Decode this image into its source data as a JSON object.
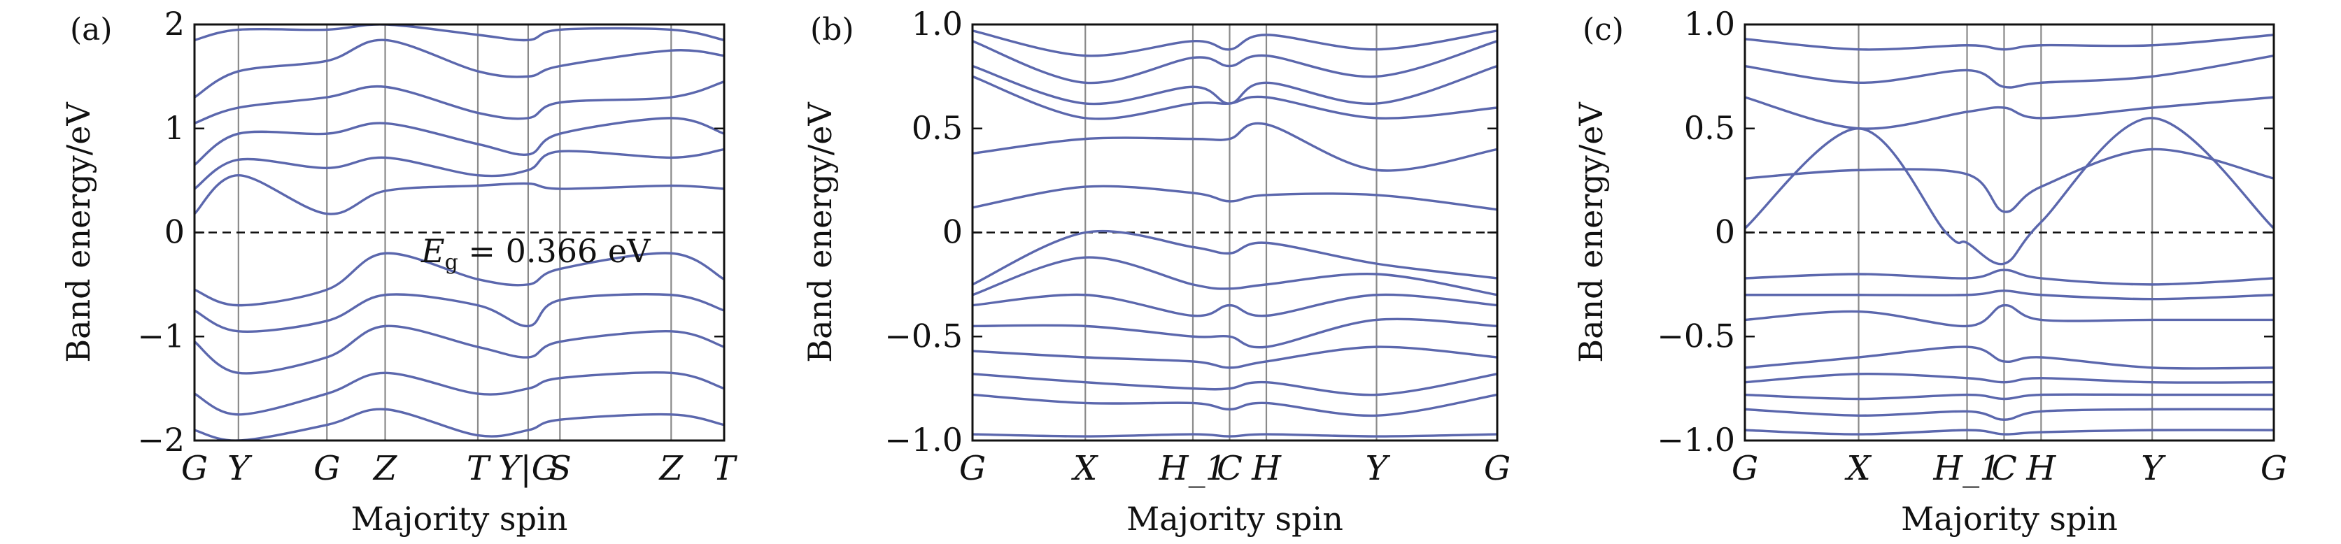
{
  "chart_data": [
    {
      "type": "line",
      "panel_label": "(a)",
      "ylabel": "Band energy/eV",
      "xlabel": "Majority spin",
      "ylim": [
        -2,
        2
      ],
      "y_ticks": [
        "2",
        "1",
        "0",
        "−1",
        "−2"
      ],
      "y_tick_values": [
        2,
        1,
        0,
        -1,
        -2
      ],
      "k_points": [
        "G",
        "Y",
        "G",
        "Z",
        "T",
        "Y|G",
        "S",
        "Z",
        "T"
      ],
      "k_point_positions": [
        0,
        0.083,
        0.25,
        0.36,
        0.535,
        0.63,
        0.69,
        0.9,
        1.0
      ],
      "fermi_level": 0,
      "annotation": {
        "text_main": "E",
        "text_sub": "g",
        "text_tail": " = 0.366 eV"
      },
      "line_color": "#5b67ad",
      "bands": [
        {
          "x": [
            0,
            0.083,
            0.25,
            0.36,
            0.535,
            0.63,
            0.69,
            0.9,
            1.0
          ],
          "y": [
            0.18,
            0.55,
            0.18,
            0.4,
            0.45,
            0.47,
            0.42,
            0.45,
            0.42
          ]
        },
        {
          "x": [
            0,
            0.083,
            0.25,
            0.36,
            0.535,
            0.63,
            0.69,
            0.9,
            1.0
          ],
          "y": [
            0.42,
            0.7,
            0.62,
            0.72,
            0.55,
            0.6,
            0.78,
            0.72,
            0.8
          ]
        },
        {
          "x": [
            0,
            0.083,
            0.25,
            0.36,
            0.535,
            0.63,
            0.69,
            0.9,
            1.0
          ],
          "y": [
            0.65,
            0.95,
            0.95,
            1.05,
            0.85,
            0.75,
            0.95,
            1.1,
            0.95
          ]
        },
        {
          "x": [
            0,
            0.083,
            0.25,
            0.36,
            0.535,
            0.63,
            0.69,
            0.9,
            1.0
          ],
          "y": [
            1.05,
            1.2,
            1.3,
            1.4,
            1.15,
            1.1,
            1.25,
            1.3,
            1.45
          ]
        },
        {
          "x": [
            0,
            0.083,
            0.25,
            0.36,
            0.535,
            0.63,
            0.69,
            0.9,
            1.0
          ],
          "y": [
            1.3,
            1.55,
            1.65,
            1.85,
            1.55,
            1.5,
            1.6,
            1.75,
            1.7
          ]
        },
        {
          "x": [
            0,
            0.083,
            0.25,
            0.36,
            0.535,
            0.63,
            0.69,
            0.9,
            1.0
          ],
          "y": [
            1.85,
            1.95,
            1.95,
            2.0,
            1.9,
            1.85,
            1.95,
            1.95,
            1.85
          ]
        },
        {
          "x": [
            0,
            0.083,
            0.25,
            0.36,
            0.535,
            0.63,
            0.69,
            0.9,
            1.0
          ],
          "y": [
            -0.55,
            -0.7,
            -0.55,
            -0.2,
            -0.45,
            -0.5,
            -0.35,
            -0.2,
            -0.45
          ]
        },
        {
          "x": [
            0,
            0.083,
            0.25,
            0.36,
            0.535,
            0.63,
            0.69,
            0.9,
            1.0
          ],
          "y": [
            -0.75,
            -0.95,
            -0.85,
            -0.6,
            -0.7,
            -0.9,
            -0.65,
            -0.6,
            -0.75
          ]
        },
        {
          "x": [
            0,
            0.083,
            0.25,
            0.36,
            0.535,
            0.63,
            0.69,
            0.9,
            1.0
          ],
          "y": [
            -1.05,
            -1.35,
            -1.2,
            -0.9,
            -1.1,
            -1.2,
            -1.05,
            -0.95,
            -1.1
          ]
        },
        {
          "x": [
            0,
            0.083,
            0.25,
            0.36,
            0.535,
            0.63,
            0.69,
            0.9,
            1.0
          ],
          "y": [
            -1.55,
            -1.75,
            -1.55,
            -1.35,
            -1.55,
            -1.5,
            -1.4,
            -1.35,
            -1.5
          ]
        },
        {
          "x": [
            0,
            0.083,
            0.25,
            0.36,
            0.535,
            0.63,
            0.69,
            0.9,
            1.0
          ],
          "y": [
            -1.9,
            -2.0,
            -1.85,
            -1.7,
            -1.95,
            -1.9,
            -1.8,
            -1.75,
            -1.85
          ]
        }
      ]
    },
    {
      "type": "line",
      "panel_label": "(b)",
      "ylabel": "Band energy/eV",
      "xlabel": "Majority spin",
      "ylim": [
        -1,
        1
      ],
      "y_ticks": [
        "1.0",
        "0.5",
        "0",
        "−0.5",
        "−1.0"
      ],
      "y_tick_values": [
        1,
        0.5,
        0,
        -0.5,
        -1
      ],
      "k_points": [
        "G",
        "X",
        "H_1",
        "C",
        "H",
        "Y",
        "G"
      ],
      "k_point_positions": [
        0,
        0.215,
        0.42,
        0.49,
        0.56,
        0.77,
        1.0
      ],
      "fermi_level": 0,
      "line_color": "#5b67ad",
      "bands": [
        {
          "x": [
            0,
            0.215,
            0.42,
            0.49,
            0.56,
            0.77,
            1.0
          ],
          "y": [
            0.12,
            0.22,
            0.19,
            0.15,
            0.18,
            0.18,
            0.11
          ]
        },
        {
          "x": [
            0,
            0.215,
            0.42,
            0.49,
            0.56,
            0.77,
            1.0
          ],
          "y": [
            0.38,
            0.45,
            0.45,
            0.45,
            0.52,
            0.3,
            0.4
          ]
        },
        {
          "x": [
            0,
            0.215,
            0.42,
            0.49,
            0.56,
            0.77,
            1.0
          ],
          "y": [
            0.75,
            0.55,
            0.62,
            0.62,
            0.65,
            0.55,
            0.6
          ]
        },
        {
          "x": [
            0,
            0.215,
            0.42,
            0.49,
            0.56,
            0.77,
            1.0
          ],
          "y": [
            0.8,
            0.62,
            0.7,
            0.62,
            0.72,
            0.62,
            0.8
          ]
        },
        {
          "x": [
            0,
            0.215,
            0.42,
            0.49,
            0.56,
            0.77,
            1.0
          ],
          "y": [
            0.92,
            0.72,
            0.84,
            0.8,
            0.85,
            0.75,
            0.92
          ]
        },
        {
          "x": [
            0,
            0.215,
            0.42,
            0.49,
            0.56,
            0.77,
            1.0
          ],
          "y": [
            0.97,
            0.85,
            0.92,
            0.88,
            0.95,
            0.88,
            0.97
          ]
        },
        {
          "x": [
            0,
            0.215,
            0.42,
            0.49,
            0.56,
            0.77,
            1.0
          ],
          "y": [
            -0.25,
            0.0,
            -0.07,
            -0.1,
            -0.05,
            -0.15,
            -0.22
          ]
        },
        {
          "x": [
            0,
            0.215,
            0.42,
            0.49,
            0.56,
            0.77,
            1.0
          ],
          "y": [
            -0.3,
            -0.12,
            -0.25,
            -0.27,
            -0.25,
            -0.2,
            -0.3
          ]
        },
        {
          "x": [
            0,
            0.215,
            0.42,
            0.49,
            0.56,
            0.77,
            1.0
          ],
          "y": [
            -0.35,
            -0.3,
            -0.4,
            -0.35,
            -0.4,
            -0.3,
            -0.35
          ]
        },
        {
          "x": [
            0,
            0.215,
            0.42,
            0.49,
            0.56,
            0.77,
            1.0
          ],
          "y": [
            -0.45,
            -0.45,
            -0.5,
            -0.5,
            -0.55,
            -0.42,
            -0.45
          ]
        },
        {
          "x": [
            0,
            0.215,
            0.42,
            0.49,
            0.56,
            0.77,
            1.0
          ],
          "y": [
            -0.57,
            -0.6,
            -0.62,
            -0.65,
            -0.62,
            -0.55,
            -0.6
          ]
        },
        {
          "x": [
            0,
            0.215,
            0.42,
            0.49,
            0.56,
            0.77,
            1.0
          ],
          "y": [
            -0.68,
            -0.72,
            -0.75,
            -0.75,
            -0.72,
            -0.78,
            -0.68
          ]
        },
        {
          "x": [
            0,
            0.215,
            0.42,
            0.49,
            0.56,
            0.77,
            1.0
          ],
          "y": [
            -0.78,
            -0.82,
            -0.82,
            -0.85,
            -0.82,
            -0.88,
            -0.78
          ]
        },
        {
          "x": [
            0,
            0.215,
            0.42,
            0.49,
            0.56,
            0.77,
            1.0
          ],
          "y": [
            -0.97,
            -0.98,
            -0.97,
            -0.98,
            -0.97,
            -0.98,
            -0.97
          ]
        }
      ]
    },
    {
      "type": "line",
      "panel_label": "(c)",
      "ylabel": "Band energy/eV",
      "xlabel": "Majority spin",
      "ylim": [
        -1,
        1
      ],
      "y_ticks": [
        "1.0",
        "0.5",
        "0",
        "−0.5",
        "−1.0"
      ],
      "y_tick_values": [
        1,
        0.5,
        0,
        -0.5,
        -1
      ],
      "k_points": [
        "G",
        "X",
        "H_1",
        "C",
        "H",
        "Y",
        "G"
      ],
      "k_point_positions": [
        0,
        0.215,
        0.42,
        0.49,
        0.56,
        0.77,
        1.0
      ],
      "fermi_level": 0,
      "line_color": "#5b67ad",
      "bands": [
        {
          "x": [
            0,
            0.215,
            0.38,
            0.42,
            0.49,
            0.56,
            0.77,
            1.0
          ],
          "y": [
            0.02,
            0.5,
            0.0,
            -0.05,
            -0.15,
            0.05,
            0.55,
            0.02
          ]
        },
        {
          "x": [
            0,
            0.215,
            0.42,
            0.49,
            0.56,
            0.77,
            1.0
          ],
          "y": [
            0.26,
            0.3,
            0.28,
            0.1,
            0.22,
            0.4,
            0.26
          ]
        },
        {
          "x": [
            0,
            0.215,
            0.42,
            0.49,
            0.56,
            0.77,
            1.0
          ],
          "y": [
            0.65,
            0.5,
            0.58,
            0.6,
            0.55,
            0.6,
            0.65
          ]
        },
        {
          "x": [
            0,
            0.215,
            0.42,
            0.49,
            0.56,
            0.77,
            1.0
          ],
          "y": [
            0.8,
            0.72,
            0.78,
            0.7,
            0.72,
            0.75,
            0.85
          ]
        },
        {
          "x": [
            0,
            0.215,
            0.42,
            0.49,
            0.56,
            0.77,
            1.0
          ],
          "y": [
            0.93,
            0.88,
            0.9,
            0.88,
            0.9,
            0.9,
            0.95
          ]
        },
        {
          "x": [
            0,
            0.215,
            0.42,
            0.49,
            0.56,
            0.77,
            1.0
          ],
          "y": [
            -0.22,
            -0.2,
            -0.22,
            -0.18,
            -0.22,
            -0.25,
            -0.22
          ]
        },
        {
          "x": [
            0,
            0.215,
            0.42,
            0.49,
            0.56,
            0.77,
            1.0
          ],
          "y": [
            -0.3,
            -0.3,
            -0.3,
            -0.28,
            -0.3,
            -0.32,
            -0.3
          ]
        },
        {
          "x": [
            0,
            0.215,
            0.42,
            0.49,
            0.56,
            0.77,
            1.0
          ],
          "y": [
            -0.42,
            -0.38,
            -0.45,
            -0.35,
            -0.42,
            -0.42,
            -0.42
          ]
        },
        {
          "x": [
            0,
            0.215,
            0.42,
            0.49,
            0.56,
            0.77,
            1.0
          ],
          "y": [
            -0.65,
            -0.6,
            -0.55,
            -0.62,
            -0.6,
            -0.65,
            -0.65
          ]
        },
        {
          "x": [
            0,
            0.215,
            0.42,
            0.49,
            0.56,
            0.77,
            1.0
          ],
          "y": [
            -0.72,
            -0.68,
            -0.7,
            -0.72,
            -0.7,
            -0.72,
            -0.72
          ]
        },
        {
          "x": [
            0,
            0.215,
            0.42,
            0.49,
            0.56,
            0.77,
            1.0
          ],
          "y": [
            -0.78,
            -0.8,
            -0.78,
            -0.8,
            -0.78,
            -0.78,
            -0.78
          ]
        },
        {
          "x": [
            0,
            0.215,
            0.42,
            0.49,
            0.56,
            0.77,
            1.0
          ],
          "y": [
            -0.85,
            -0.88,
            -0.86,
            -0.9,
            -0.86,
            -0.85,
            -0.85
          ]
        },
        {
          "x": [
            0,
            0.215,
            0.42,
            0.49,
            0.56,
            0.77,
            1.0
          ],
          "y": [
            -0.95,
            -0.97,
            -0.95,
            -0.97,
            -0.96,
            -0.95,
            -0.95
          ]
        }
      ]
    }
  ]
}
